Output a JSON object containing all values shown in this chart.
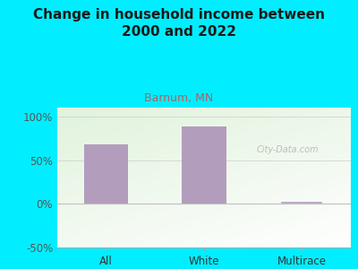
{
  "title": "Change in household income between\n2000 and 2022",
  "subtitle": "Barnum, MN",
  "categories": [
    "All",
    "White",
    "Multirace"
  ],
  "values": [
    68,
    88,
    1
  ],
  "bar_color": "#b39dbd",
  "title_fontsize": 11,
  "subtitle_fontsize": 9,
  "subtitle_color": "#b06060",
  "tick_label_fontsize": 8.5,
  "ylim": [
    -50,
    110
  ],
  "yticks": [
    -50,
    0,
    50,
    100
  ],
  "ytick_labels": [
    "-50%",
    "0%",
    "50%",
    "100%"
  ],
  "background_outer": "#00eeff",
  "watermark": "City-Data.com",
  "bar_width": 0.45,
  "multirace_line_val": 1
}
